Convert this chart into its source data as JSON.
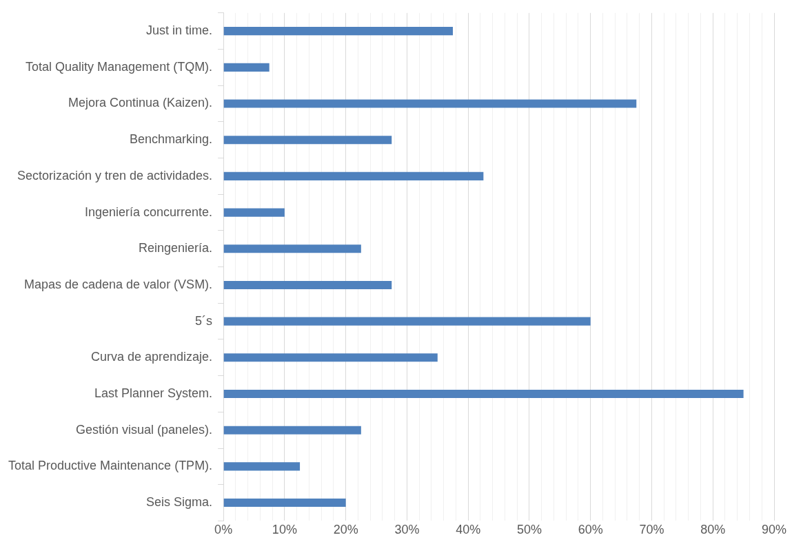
{
  "chart_data": {
    "type": "bar",
    "orientation": "horizontal",
    "categories": [
      "Just in time.",
      "Total Quality Management (TQM).",
      "Mejora Continua (Kaizen).",
      "Benchmarking.",
      "Sectorización y tren de actividades.",
      "Ingeniería concurrente.",
      "Reingeniería.",
      "Mapas de cadena de valor (VSM).",
      "5´s",
      "Curva de aprendizaje.",
      "Last Planner System.",
      "Gestión visual (paneles).",
      "Total Productive Maintenance (TPM).",
      "Seis Sigma."
    ],
    "values": [
      37.5,
      7.5,
      67.5,
      27.5,
      42.5,
      10,
      22.5,
      27.5,
      60,
      35,
      85,
      22.5,
      12.5,
      20
    ],
    "color": "#4f81bd",
    "xlim": [
      0,
      90
    ],
    "xticks": [
      {
        "value": 0,
        "label": "0%"
      },
      {
        "value": 2,
        "label": null
      },
      {
        "value": 4,
        "label": null
      },
      {
        "value": 6,
        "label": null
      },
      {
        "value": 8,
        "label": null
      },
      {
        "value": 10,
        "label": "10%"
      },
      {
        "value": 12,
        "label": null
      },
      {
        "value": 14,
        "label": null
      },
      {
        "value": 16,
        "label": null
      },
      {
        "value": 18,
        "label": null
      },
      {
        "value": 20,
        "label": "20%"
      },
      {
        "value": 22,
        "label": null
      },
      {
        "value": 24,
        "label": null
      },
      {
        "value": 26,
        "label": null
      },
      {
        "value": 28,
        "label": null
      },
      {
        "value": 30,
        "label": "30%"
      },
      {
        "value": 32,
        "label": null
      },
      {
        "value": 34,
        "label": null
      },
      {
        "value": 36,
        "label": null
      },
      {
        "value": 38,
        "label": null
      },
      {
        "value": 40,
        "label": "40%"
      },
      {
        "value": 42,
        "label": null
      },
      {
        "value": 44,
        "label": null
      },
      {
        "value": 46,
        "label": null
      },
      {
        "value": 48,
        "label": null
      },
      {
        "value": 50,
        "label": "50%"
      },
      {
        "value": 52,
        "label": null
      },
      {
        "value": 54,
        "label": null
      },
      {
        "value": 56,
        "label": null
      },
      {
        "value": 58,
        "label": null
      },
      {
        "value": 60,
        "label": "60%"
      },
      {
        "value": 62,
        "label": null
      },
      {
        "value": 64,
        "label": null
      },
      {
        "value": 66,
        "label": null
      },
      {
        "value": 68,
        "label": null
      },
      {
        "value": 70,
        "label": "70%"
      },
      {
        "value": 72,
        "label": null
      },
      {
        "value": 74,
        "label": null
      },
      {
        "value": 76,
        "label": null
      },
      {
        "value": 78,
        "label": null
      },
      {
        "value": 80,
        "label": "80%"
      },
      {
        "value": 82,
        "label": null
      },
      {
        "value": 84,
        "label": null
      },
      {
        "value": 86,
        "label": null
      },
      {
        "value": 88,
        "label": null
      },
      {
        "value": 90,
        "label": "90%"
      }
    ],
    "grid": "x"
  }
}
